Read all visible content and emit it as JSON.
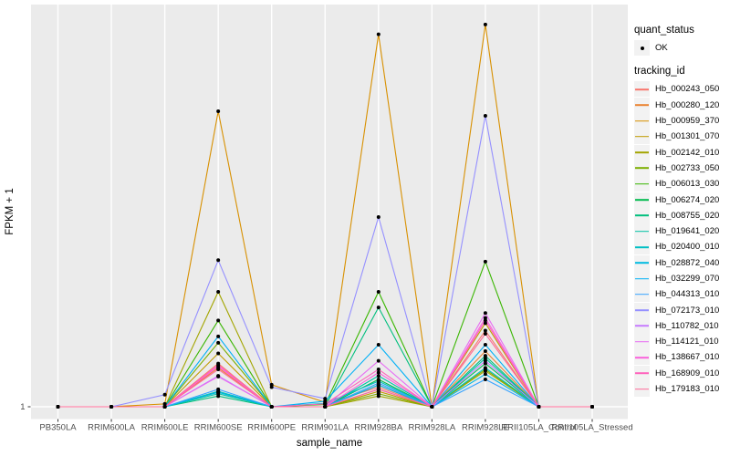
{
  "figure": {
    "xlabel": "sample_name",
    "ylabel": "FPKM + 1",
    "y_tick_labels": [
      "1"
    ],
    "colors": {
      "panel_background": "#EBEBEB",
      "gridline": "#FFFFFF",
      "point": "#000000",
      "tick_label": "#4D4D4D",
      "tick_mark": "#333333",
      "legend_key_background": "#F2F2F2"
    },
    "legend": {
      "quant_title": "quant_status",
      "ok_label": "OK",
      "tracking_title": "tracking_id"
    }
  },
  "chart_data": {
    "type": "line",
    "title": "",
    "xlabel": "sample_name",
    "ylabel": "FPKM + 1",
    "yscale": "log10",
    "ylim": [
      1,
      1000
    ],
    "grid": "vertical-major-white",
    "legend_position": "right",
    "marker": "point",
    "x": [
      "PB350LA",
      "RRIM600LA",
      "RRIM600LE",
      "RRIM600SE",
      "RRIM600PE",
      "RRIM901LA",
      "RRIM928BA",
      "RRIM928LA",
      "RRIM928LE",
      "RRII105LA_Control",
      "RRII105LA_Stressed"
    ],
    "series": [
      {
        "name": "Hb_000243_050",
        "color": "#F8766D",
        "values": [
          1,
          1,
          1,
          2.1,
          1,
          1.05,
          1.4,
          1,
          3.7,
          1,
          1
        ]
      },
      {
        "name": "Hb_000280_120",
        "color": "#EA8331",
        "values": [
          1,
          1,
          1,
          1.95,
          1,
          1,
          1.45,
          1,
          2.6,
          1,
          1
        ]
      },
      {
        "name": "Hb_000959_370",
        "color": "#D89000",
        "values": [
          1,
          1,
          1.05,
          160,
          1.46,
          1.08,
          600,
          1,
          710,
          1,
          1
        ]
      },
      {
        "name": "Hb_001301_070",
        "color": "#C09B00",
        "values": [
          1,
          1,
          1,
          2.5,
          1,
          1,
          1.3,
          1,
          4.2,
          1,
          1
        ]
      },
      {
        "name": "Hb_002142_010",
        "color": "#A3A500",
        "values": [
          1,
          1,
          1,
          7.2,
          1,
          1,
          1.2,
          1,
          1.85,
          1,
          1
        ]
      },
      {
        "name": "Hb_002733_050",
        "color": "#7CAE00",
        "values": [
          1,
          1,
          1,
          3.0,
          1,
          1,
          1.25,
          1,
          1.9,
          1,
          1
        ]
      },
      {
        "name": "Hb_006013_030",
        "color": "#39B600",
        "values": [
          1,
          1,
          1,
          4.4,
          1,
          1.04,
          7.2,
          1,
          12.1,
          1,
          1
        ]
      },
      {
        "name": "Hb_006274_020",
        "color": "#00BB4E",
        "values": [
          1,
          1,
          1,
          1.3,
          1,
          1,
          1.6,
          1,
          2.1,
          1,
          1
        ]
      },
      {
        "name": "Hb_008755_020",
        "color": "#00BF7D",
        "values": [
          1,
          1,
          1,
          1.2,
          1,
          1,
          5.5,
          1,
          2.4,
          1,
          1
        ]
      },
      {
        "name": "Hb_019641_020",
        "color": "#00C1A3",
        "values": [
          1,
          1,
          1,
          1.25,
          1,
          1,
          1.7,
          1,
          2.3,
          1,
          1
        ]
      },
      {
        "name": "Hb_020400_010",
        "color": "#00BFC4",
        "values": [
          1,
          1,
          1,
          1.3,
          1,
          1.06,
          1.55,
          1,
          1.95,
          1,
          1
        ]
      },
      {
        "name": "Hb_028872_040",
        "color": "#00BAE0",
        "values": [
          1,
          1,
          1,
          1.28,
          1,
          1,
          1.45,
          1,
          1.75,
          1,
          1
        ]
      },
      {
        "name": "Hb_032299_070",
        "color": "#00B0F6",
        "values": [
          1,
          1,
          1,
          3.35,
          1,
          1.1,
          2.9,
          1,
          2.9,
          1,
          1
        ]
      },
      {
        "name": "Hb_044313_010",
        "color": "#35A2FF",
        "values": [
          1,
          1,
          1,
          1.35,
          1,
          1,
          1.5,
          1,
          1.6,
          1,
          1
        ]
      },
      {
        "name": "Hb_072173_010",
        "color": "#9590FF",
        "values": [
          1,
          1,
          1.23,
          12.4,
          1.4,
          1.15,
          26,
          1,
          148,
          1,
          1
        ]
      },
      {
        "name": "Hb_110782_010",
        "color": "#C77CFF",
        "values": [
          1,
          1,
          1,
          1.7,
          1,
          1,
          1.35,
          1,
          2.2,
          1,
          1
        ]
      },
      {
        "name": "Hb_114121_010",
        "color": "#E76BF3",
        "values": [
          1,
          1,
          1,
          1.68,
          1,
          1,
          2.2,
          1,
          5.0,
          1,
          1
        ]
      },
      {
        "name": "Hb_138667_010",
        "color": "#FA62DB",
        "values": [
          1,
          1,
          1,
          2.0,
          1,
          1,
          1.8,
          1,
          4.6,
          1,
          1
        ]
      },
      {
        "name": "Hb_168909_010",
        "color": "#FF62BC",
        "values": [
          1,
          1,
          1,
          2.05,
          1,
          1.05,
          1.9,
          1,
          4.4,
          1,
          1
        ]
      },
      {
        "name": "Hb_179183_010",
        "color": "#FF6A98",
        "values": [
          1,
          1,
          1,
          1.9,
          1,
          1,
          1.35,
          1,
          3.5,
          1,
          1
        ]
      }
    ]
  }
}
